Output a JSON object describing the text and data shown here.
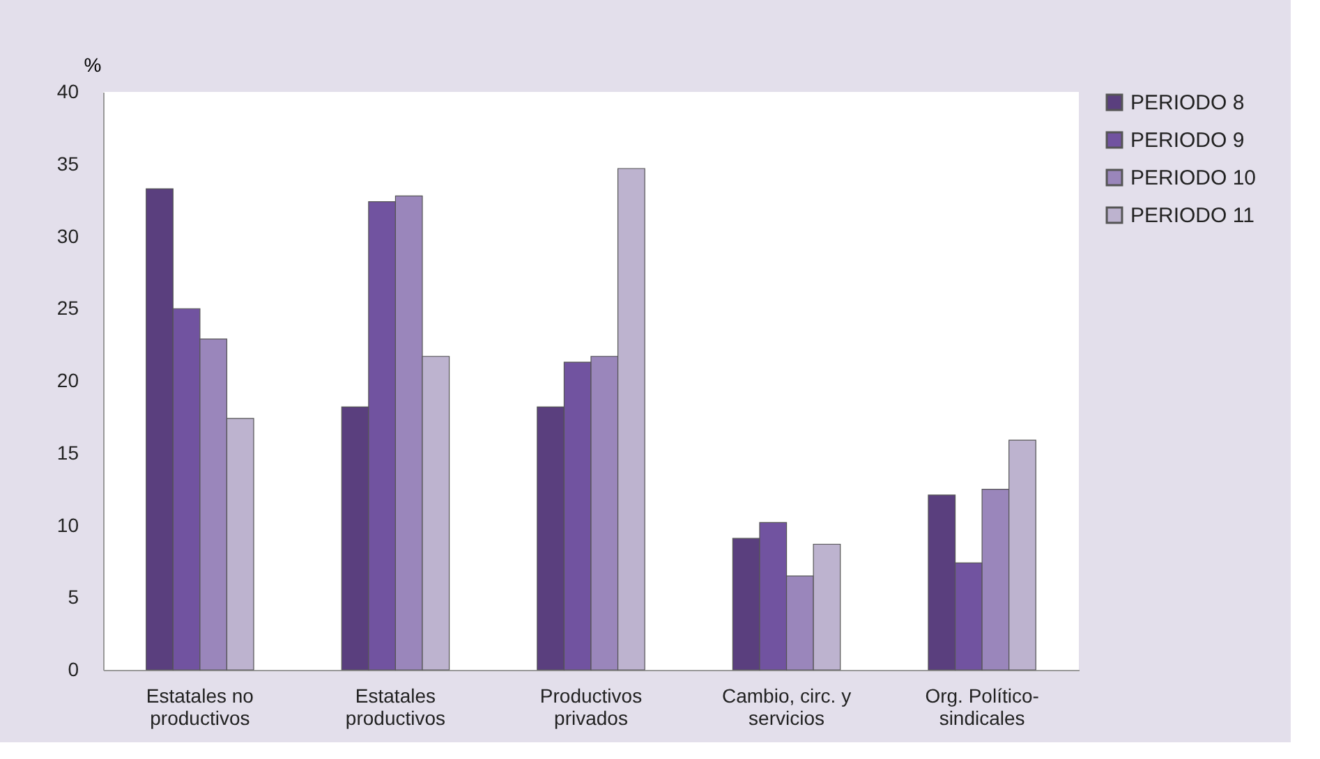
{
  "chart_data": {
    "type": "bar",
    "ylabel": "%",
    "categories": [
      "Estatales no\nproductivos",
      "Estatales\nproductivos",
      "Productivos\nprivados",
      "Cambio, circ. y\nservicios",
      "Org. Político-\nsindicales"
    ],
    "series": [
      {
        "name": "PERIODO  8",
        "color": "#5a3f7e",
        "values": [
          33.3,
          18.2,
          18.2,
          9.1,
          12.1
        ]
      },
      {
        "name": "PERIODO  9",
        "color": "#7153a0",
        "values": [
          25.0,
          32.4,
          21.3,
          10.2,
          7.4
        ]
      },
      {
        "name": " PERIODO  10",
        "color": "#9a86bb",
        "values": [
          22.9,
          32.8,
          21.7,
          6.5,
          12.5
        ]
      },
      {
        "name": "PERIODO  11",
        "color": "#bdb3cf",
        "values": [
          17.4,
          21.7,
          34.7,
          8.7,
          15.9
        ]
      }
    ],
    "ylim": [
      0,
      40
    ],
    "yticks": [
      0,
      5,
      10,
      15,
      20,
      25,
      30,
      35,
      40
    ],
    "grid": false,
    "legend": "right"
  }
}
